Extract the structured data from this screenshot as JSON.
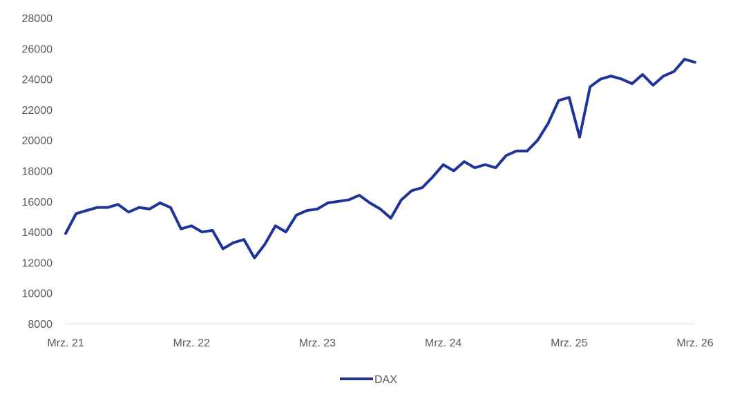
{
  "chart_data": {
    "type": "line",
    "title": "",
    "xlabel": "",
    "ylabel": "",
    "ylim": [
      8000,
      28000
    ],
    "y_ticks": [
      "8000",
      "10000",
      "12000",
      "14000",
      "16000",
      "18000",
      "20000",
      "22000",
      "24000",
      "26000",
      "28000"
    ],
    "x_ticks": [
      "Mrz. 21",
      "Mrz. 22",
      "Mrz. 23",
      "Mrz. 24",
      "Mrz. 25",
      "Mrz. 26"
    ],
    "grid": false,
    "legend_position": "bottom",
    "series": [
      {
        "name": "DAX",
        "color": "#1f3497",
        "x": [
          "2021-03",
          "2021-04",
          "2021-05",
          "2021-06",
          "2021-07",
          "2021-08",
          "2021-09",
          "2021-10",
          "2021-11",
          "2021-12",
          "2022-01",
          "2022-02",
          "2022-03",
          "2022-04",
          "2022-05",
          "2022-06",
          "2022-07",
          "2022-08",
          "2022-09",
          "2022-10",
          "2022-11",
          "2022-12",
          "2023-01",
          "2023-02",
          "2023-03",
          "2023-04",
          "2023-05",
          "2023-06",
          "2023-07",
          "2023-08",
          "2023-09",
          "2023-10",
          "2023-11",
          "2023-12",
          "2024-01",
          "2024-02",
          "2024-03",
          "2024-04",
          "2024-05",
          "2024-06",
          "2024-07",
          "2024-08",
          "2024-09",
          "2024-10",
          "2024-11",
          "2024-12",
          "2025-01",
          "2025-02",
          "2025-03",
          "2025-04",
          "2025-05",
          "2025-06",
          "2025-07",
          "2025-08",
          "2025-09",
          "2025-10",
          "2025-11",
          "2025-12",
          "2026-01",
          "2026-02",
          "2026-03"
        ],
        "values": [
          13900,
          15200,
          15400,
          15600,
          15600,
          15800,
          15300,
          15600,
          15500,
          15900,
          15600,
          14200,
          14400,
          14000,
          14100,
          12900,
          13300,
          13500,
          12300,
          13200,
          14400,
          14000,
          15100,
          15400,
          15500,
          15900,
          16000,
          16100,
          16400,
          15900,
          15500,
          14900,
          16100,
          16700,
          16900,
          17600,
          18400,
          18000,
          18600,
          18200,
          18400,
          18200,
          19000,
          19300,
          19300,
          20000,
          21100,
          22600,
          22800,
          20200,
          23500,
          24000,
          24200,
          24000,
          23700,
          24300,
          23600,
          24200,
          24500,
          25300,
          25100
        ]
      }
    ]
  }
}
